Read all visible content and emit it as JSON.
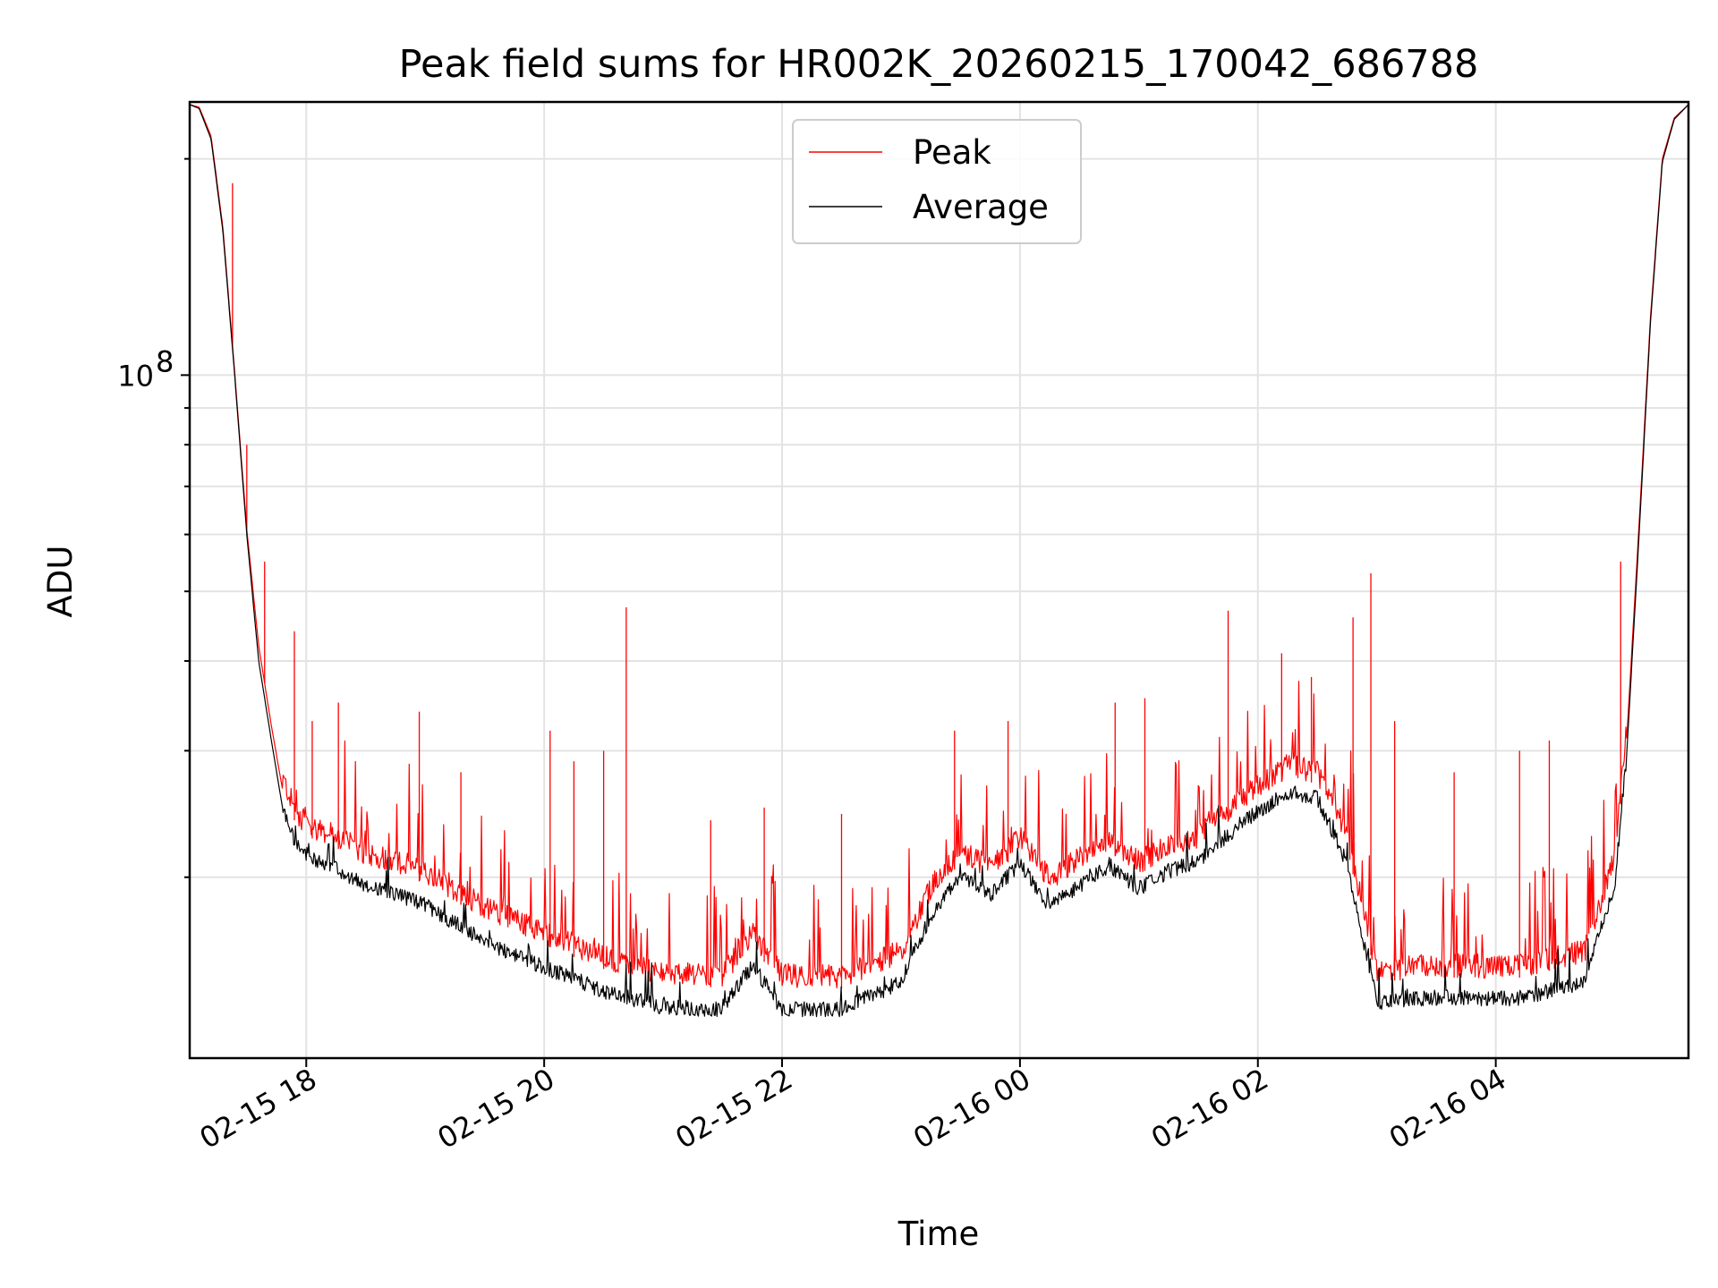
{
  "chart_data": {
    "type": "line",
    "title": "Peak field sums for HR002K_20260215_170042_686788",
    "xlabel": "Time",
    "ylabel": "ADU",
    "yscale": "log",
    "ylim": [
      11200000,
      240000000
    ],
    "xlim_hours": [
      -0.98,
      11.62
    ],
    "x_reference": "2026-02-15 18:00",
    "x_ticks": [
      {
        "label": "02-15 18",
        "hours": 0
      },
      {
        "label": "02-15 20",
        "hours": 2
      },
      {
        "label": "02-15 22",
        "hours": 4
      },
      {
        "label": "02-16 00",
        "hours": 6
      },
      {
        "label": "02-16 02",
        "hours": 8
      },
      {
        "label": "02-16 04",
        "hours": 10
      }
    ],
    "y_ticks": [
      {
        "label": "10",
        "exponent": "8",
        "value": 100000000
      }
    ],
    "y_minor_ticks": [
      20000000,
      30000000,
      40000000,
      50000000,
      60000000,
      70000000,
      80000000,
      90000000,
      200000000
    ],
    "grid": true,
    "legend_position": "upper center",
    "series": [
      {
        "name": "Peak",
        "color": "#ff0000",
        "x": [
          -0.98,
          -0.9,
          -0.8,
          -0.7,
          -0.6,
          -0.5,
          -0.4,
          -0.3,
          -0.2,
          -0.1,
          0,
          0.25,
          0.5,
          0.75,
          1,
          1.5,
          2,
          2.5,
          3,
          3.5,
          3.75,
          4,
          4.5,
          5,
          5.25,
          5.5,
          5.75,
          6,
          6.25,
          6.5,
          6.75,
          7,
          7.25,
          7.5,
          7.75,
          8,
          8.25,
          8.5,
          8.75,
          9,
          9.25,
          9.5,
          9.75,
          10,
          10.25,
          10.5,
          10.75,
          11,
          11.1,
          11.2,
          11.3,
          11.4,
          11.5,
          11.62
        ],
        "y": [
          238000000,
          236000000,
          215000000,
          160000000,
          100000000,
          61000000,
          42000000,
          33000000,
          26500000,
          24000000,
          22800000,
          22000000,
          20800000,
          20300000,
          19600000,
          17500000,
          16100000,
          14900000,
          14100000,
          14050000,
          16100000,
          14050000,
          14000000,
          15200000,
          18600000,
          21000000,
          19800000,
          21800000,
          19100000,
          20500000,
          21700000,
          20200000,
          21300000,
          22000000,
          23900000,
          25800000,
          27500000,
          27000000,
          22000000,
          14300000,
          14400000,
          14500000,
          14500000,
          14450000,
          14500000,
          14900000,
          15200000,
          20600000,
          31000000,
          60000000,
          120000000,
          200000000,
          228000000,
          238000000
        ]
      },
      {
        "name": "Average",
        "color": "#000000",
        "x": [
          -0.98,
          -0.9,
          -0.8,
          -0.7,
          -0.6,
          -0.5,
          -0.4,
          -0.3,
          -0.2,
          -0.1,
          0,
          0.25,
          0.5,
          0.75,
          1,
          1.5,
          2,
          2.5,
          3,
          3.5,
          3.75,
          4,
          4.5,
          5,
          5.25,
          5.5,
          5.75,
          6,
          6.25,
          6.5,
          6.75,
          7,
          7.25,
          7.5,
          7.75,
          8,
          8.25,
          8.5,
          8.75,
          9,
          9.25,
          9.5,
          9.75,
          10,
          10.25,
          10.5,
          10.75,
          11,
          11.1,
          11.2,
          11.3,
          11.4,
          11.5,
          11.62
        ],
        "y": [
          238000000,
          235000000,
          213000000,
          158000000,
          99000000,
          60000000,
          40000000,
          31500000,
          25000000,
          22500000,
          21300000,
          20600000,
          19400000,
          19000000,
          18300000,
          16300000,
          15000000,
          13900000,
          13200000,
          13100000,
          15100000,
          13100000,
          13100000,
          14300000,
          17700000,
          20100000,
          18900000,
          20900000,
          18200000,
          19500000,
          20800000,
          19300000,
          20400000,
          21100000,
          22900000,
          24700000,
          26300000,
          25800000,
          20900000,
          13400000,
          13500000,
          13600000,
          13600000,
          13550000,
          13600000,
          14000000,
          14300000,
          19600000,
          29500000,
          58000000,
          118000000,
          198000000,
          227000000,
          238000000
        ]
      }
    ],
    "peak_spikes": [
      {
        "hours": -0.62,
        "value": 185000000
      },
      {
        "hours": -0.5,
        "value": 80000000
      },
      {
        "hours": -0.35,
        "value": 55000000
      },
      {
        "hours": -0.1,
        "value": 44000000
      },
      {
        "hours": 0.05,
        "value": 33000000
      },
      {
        "hours": 0.27,
        "value": 35000000
      },
      {
        "hours": 0.95,
        "value": 34000000
      },
      {
        "hours": 1.3,
        "value": 28000000
      },
      {
        "hours": 2.05,
        "value": 32000000
      },
      {
        "hours": 2.25,
        "value": 29000000
      },
      {
        "hours": 2.5,
        "value": 30000000
      },
      {
        "hours": 2.69,
        "value": 47500000
      },
      {
        "hours": 3.4,
        "value": 24000000
      },
      {
        "hours": 3.85,
        "value": 25000000
      },
      {
        "hours": 4.5,
        "value": 24500000
      },
      {
        "hours": 5.45,
        "value": 32000000
      },
      {
        "hours": 5.9,
        "value": 33000000
      },
      {
        "hours": 6.8,
        "value": 35000000
      },
      {
        "hours": 7.05,
        "value": 35500000
      },
      {
        "hours": 7.75,
        "value": 47000000
      },
      {
        "hours": 8.2,
        "value": 41000000
      },
      {
        "hours": 8.45,
        "value": 38000000
      },
      {
        "hours": 8.8,
        "value": 46000000
      },
      {
        "hours": 8.95,
        "value": 53000000
      },
      {
        "hours": 9.15,
        "value": 33000000
      },
      {
        "hours": 9.65,
        "value": 28000000
      },
      {
        "hours": 10.2,
        "value": 30000000
      },
      {
        "hours": 10.45,
        "value": 31000000
      },
      {
        "hours": 11.05,
        "value": 55000000
      }
    ]
  }
}
